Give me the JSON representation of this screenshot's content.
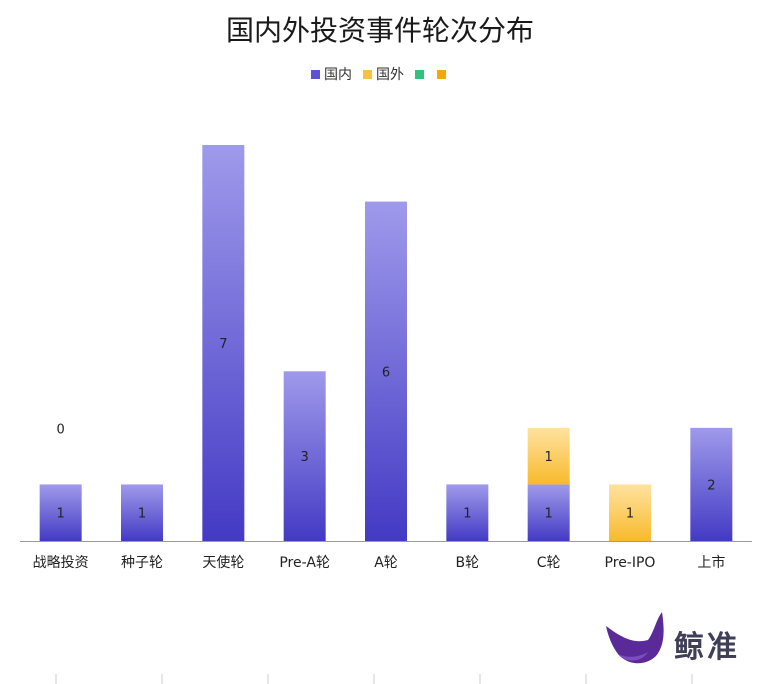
{
  "chart_data": {
    "type": "bar",
    "stacked": true,
    "title": "国内外投资事件轮次分布",
    "categories": [
      "战略投资",
      "种子轮",
      "天使轮",
      "Pre-A轮",
      "A轮",
      "B轮",
      "C轮",
      "Pre-IPO",
      "上市"
    ],
    "series": [
      {
        "name": "国内",
        "values": [
          1,
          1,
          7,
          3,
          6,
          1,
          1,
          0,
          2
        ],
        "color": "#5b53d6",
        "label_values": [
          "1",
          "1",
          "7",
          "3",
          "6",
          "1",
          "1",
          null,
          "2"
        ]
      },
      {
        "name": "国外",
        "values": [
          0,
          0,
          0,
          0,
          0,
          0,
          1,
          1,
          0
        ],
        "color": "#f9c23c",
        "label_values": [
          "0",
          null,
          null,
          null,
          null,
          null,
          "1",
          "1",
          null
        ]
      },
      {
        "name": "",
        "values": [
          0,
          0,
          0,
          0,
          0,
          0,
          0,
          0,
          0
        ],
        "color": "#2ec47a"
      },
      {
        "name": "",
        "values": [
          0,
          0,
          0,
          0,
          0,
          0,
          0,
          0,
          0
        ],
        "color": "#f5a800"
      }
    ],
    "ylim": [
      0,
      7
    ],
    "grid": false,
    "legend": "top-center",
    "xlabel": "",
    "ylabel": ""
  },
  "logo": {
    "text": "鲸准"
  }
}
